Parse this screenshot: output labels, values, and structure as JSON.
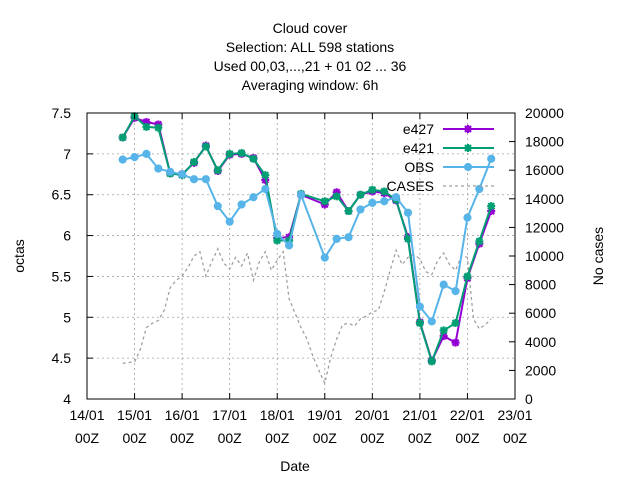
{
  "chart_data": {
    "type": "line",
    "title": [
      "Cloud cover",
      "Selection: ALL    598 stations",
      "Used  00,03,...,21  + 01 02 ... 36",
      "Averaging window:  6h"
    ],
    "xlabel": "Date",
    "ylabel": "octas",
    "y2label": "No cases",
    "x_unit": "days since 14/01 00Z",
    "xlim": [
      0,
      9
    ],
    "ylim": [
      4,
      7.5
    ],
    "y2lim": [
      0,
      20000
    ],
    "xticks": [
      {
        "x": 0,
        "l1": "14/01",
        "l2": "00Z"
      },
      {
        "x": 1,
        "l1": "15/01",
        "l2": "00Z"
      },
      {
        "x": 2,
        "l1": "16/01",
        "l2": "00Z"
      },
      {
        "x": 3,
        "l1": "17/01",
        "l2": "00Z"
      },
      {
        "x": 4,
        "l1": "18/01",
        "l2": "00Z"
      },
      {
        "x": 5,
        "l1": "19/01",
        "l2": "00Z"
      },
      {
        "x": 6,
        "l1": "20/01",
        "l2": "00Z"
      },
      {
        "x": 7,
        "l1": "21/01",
        "l2": "00Z"
      },
      {
        "x": 8,
        "l1": "22/01",
        "l2": "00Z"
      },
      {
        "x": 9,
        "l1": "23/01",
        "l2": "00Z"
      }
    ],
    "yticks": [
      4,
      4.5,
      5,
      5.5,
      6,
      6.5,
      7,
      7.5
    ],
    "yticklabels": [
      "4",
      "4.5",
      "5",
      "5.5",
      "6",
      "6.5",
      "7",
      "7.5"
    ],
    "y2ticks": [
      0,
      2000,
      4000,
      6000,
      8000,
      10000,
      12000,
      14000,
      16000,
      18000,
      20000
    ],
    "y2ticklabels": [
      "0",
      "2000",
      "4000",
      "6000",
      "8000",
      "10000",
      "12000",
      "14000",
      "16000",
      "18000",
      "20000"
    ],
    "grid": true,
    "legend_position": "top-right",
    "series": [
      {
        "name": "e427",
        "color": "#9400d3",
        "marker": "star",
        "axis": "y1",
        "dashed": false,
        "x": [
          0.75,
          1.0,
          1.25,
          1.5,
          1.75,
          2.0,
          2.25,
          2.5,
          2.75,
          3.0,
          3.25,
          3.5,
          3.75,
          4.0,
          4.25,
          4.5,
          5.0,
          5.25,
          5.5,
          5.75,
          6.0,
          6.25,
          6.5,
          6.75,
          7.0,
          7.25,
          7.5,
          7.75,
          8.0,
          8.25,
          8.5
        ],
        "y": [
          7.2,
          7.44,
          7.39,
          7.36,
          6.76,
          6.75,
          6.89,
          7.1,
          6.79,
          6.99,
          7.0,
          6.95,
          6.68,
          5.97,
          5.98,
          6.5,
          6.38,
          6.53,
          6.3,
          6.5,
          6.54,
          6.52,
          6.43,
          5.98,
          4.94,
          4.47,
          4.77,
          4.69,
          5.48,
          5.9,
          6.3
        ]
      },
      {
        "name": "e421",
        "color": "#009e73",
        "marker": "star",
        "axis": "y1",
        "dashed": false,
        "x": [
          0.75,
          1.0,
          1.25,
          1.5,
          1.75,
          2.0,
          2.25,
          2.5,
          2.75,
          3.0,
          3.25,
          3.5,
          3.75,
          4.0,
          4.25,
          4.5,
          5.0,
          5.25,
          5.5,
          5.75,
          6.0,
          6.25,
          6.5,
          6.75,
          7.0,
          7.25,
          7.5,
          7.75,
          8.0,
          8.25,
          8.5
        ],
        "y": [
          7.2,
          7.46,
          7.33,
          7.32,
          6.76,
          6.74,
          6.9,
          7.09,
          6.8,
          7.0,
          7.01,
          6.94,
          6.74,
          5.94,
          5.94,
          6.51,
          6.42,
          6.48,
          6.3,
          6.5,
          6.56,
          6.54,
          6.44,
          5.96,
          4.93,
          4.46,
          4.84,
          4.93,
          5.5,
          5.93,
          6.36
        ]
      },
      {
        "name": "OBS",
        "color": "#56b4e9",
        "marker": "circle",
        "axis": "y1",
        "dashed": false,
        "x": [
          0.75,
          1.0,
          1.25,
          1.5,
          1.75,
          2.0,
          2.25,
          2.5,
          2.75,
          3.0,
          3.25,
          3.5,
          3.75,
          4.0,
          4.25,
          4.5,
          5.0,
          5.25,
          5.5,
          5.75,
          6.0,
          6.25,
          6.5,
          6.75,
          7.0,
          7.25,
          7.5,
          7.75,
          8.0,
          8.25,
          8.5
        ],
        "y": [
          6.93,
          6.96,
          7.0,
          6.82,
          6.78,
          6.75,
          6.69,
          6.69,
          6.36,
          6.17,
          6.38,
          6.47,
          6.57,
          6.02,
          5.88,
          6.5,
          5.73,
          5.96,
          5.98,
          6.32,
          6.4,
          6.42,
          6.47,
          6.28,
          5.13,
          4.95,
          5.4,
          5.32,
          6.22,
          6.57,
          6.94
        ]
      },
      {
        "name": "CASES",
        "color": "#a0a0a0",
        "marker": "none",
        "axis": "y2",
        "dashed": true,
        "x": [
          0.75,
          0.875,
          1.0,
          1.125,
          1.25,
          1.375,
          1.5,
          1.625,
          1.75,
          1.875,
          2.0,
          2.125,
          2.25,
          2.375,
          2.5,
          2.625,
          2.75,
          2.875,
          3.0,
          3.125,
          3.25,
          3.375,
          3.5,
          3.625,
          3.75,
          3.875,
          4.0,
          4.125,
          4.25,
          4.375,
          4.5,
          4.625,
          4.75,
          4.875,
          5.0,
          5.125,
          5.25,
          5.375,
          5.5,
          5.625,
          5.75,
          5.875,
          6.0,
          6.125,
          6.25,
          6.375,
          6.5,
          6.625,
          6.75,
          6.875,
          7.0,
          7.125,
          7.25,
          7.375,
          7.5,
          7.625,
          7.75,
          7.875,
          8.0,
          8.125,
          8.25,
          8.375,
          8.5
        ],
        "y": [
          2500,
          2550,
          2600,
          3500,
          5000,
          5300,
          5500,
          6200,
          7800,
          8300,
          8600,
          9200,
          10000,
          10300,
          8600,
          9600,
          10500,
          9500,
          9100,
          9900,
          9300,
          10200,
          8300,
          9600,
          10300,
          9000,
          9700,
          10300,
          7000,
          6000,
          5000,
          4200,
          3000,
          2000,
          1100,
          2900,
          4200,
          5200,
          5300,
          5100,
          5600,
          5800,
          6100,
          6200,
          7500,
          9000,
          10400,
          9400,
          9900,
          10100,
          9800,
          8900,
          8700,
          9700,
          10200,
          9400,
          9000,
          10000,
          9900,
          5600,
          4900,
          5200,
          5600
        ]
      }
    ]
  }
}
